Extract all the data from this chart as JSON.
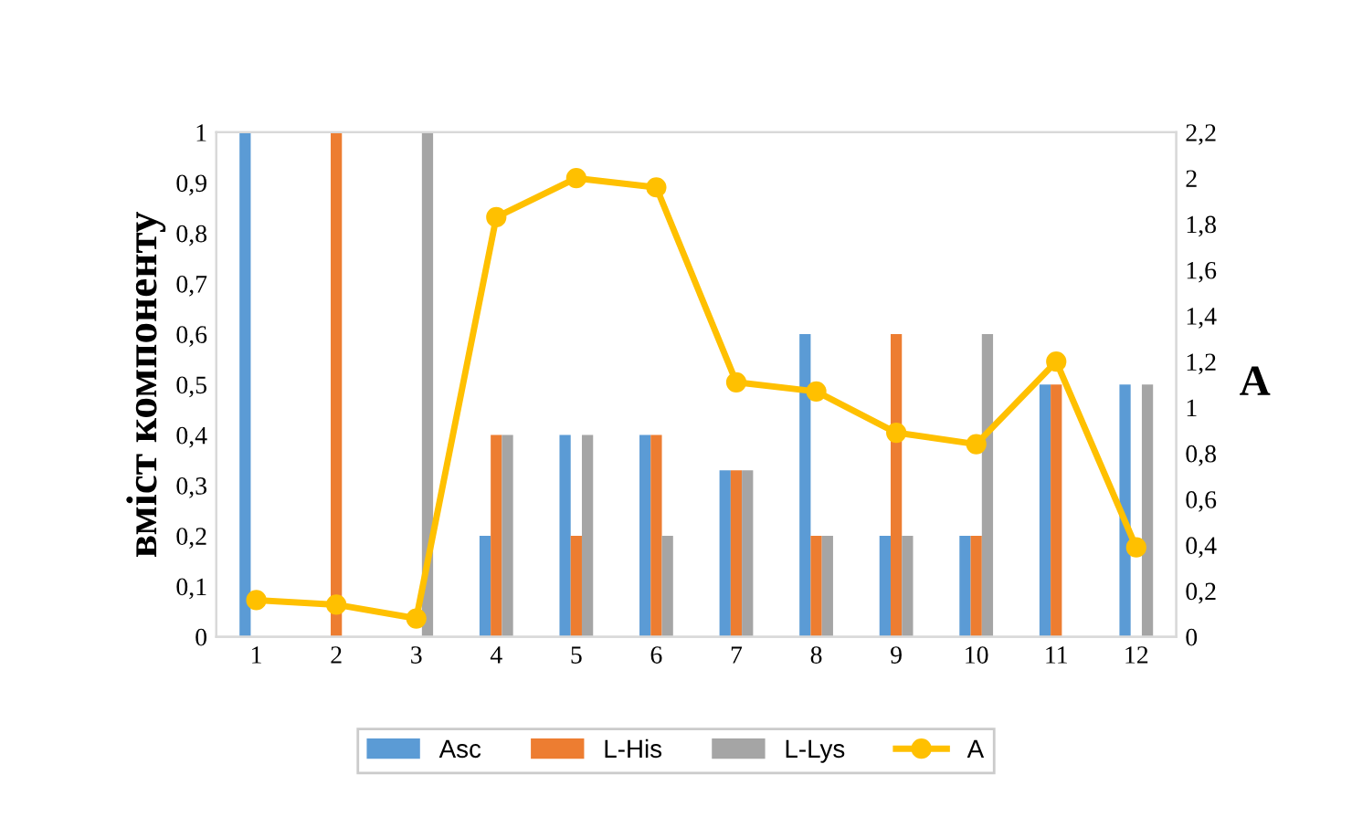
{
  "chart_data": {
    "type": "bar",
    "ylabel": "вміст компоненту",
    "y2label": "A",
    "categories": [
      "1",
      "2",
      "3",
      "4",
      "5",
      "6",
      "7",
      "8",
      "9",
      "10",
      "11",
      "12"
    ],
    "series": [
      {
        "name": "Asc",
        "color": "#5b9bd5",
        "values": [
          1,
          0,
          0,
          0.2,
          0.4,
          0.4,
          0.33,
          0.6,
          0.2,
          0.2,
          0.5,
          0.5
        ]
      },
      {
        "name": "L-His",
        "color": "#ed7d31",
        "values": [
          0,
          1,
          0,
          0.4,
          0.2,
          0.4,
          0.33,
          0.2,
          0.6,
          0.2,
          0.5,
          0
        ]
      },
      {
        "name": "L-Lys",
        "color": "#a5a5a5",
        "values": [
          0,
          0,
          1,
          0.4,
          0.4,
          0.2,
          0.33,
          0.2,
          0.2,
          0.6,
          0,
          0.5
        ]
      },
      {
        "name": "A",
        "type": "line",
        "axis": "y2",
        "color": "#ffc000",
        "marker": "circle",
        "values": [
          0.16,
          0.14,
          0.08,
          1.83,
          2.0,
          1.96,
          1.11,
          1.07,
          0.89,
          0.84,
          1.2,
          0.39
        ]
      }
    ],
    "ylim": [
      0,
      1
    ],
    "yticks": [
      0,
      {
        "value": 0.1,
        "label": "0,1"
      },
      {
        "value": 0.2,
        "label": "0,2"
      },
      {
        "value": 0.3,
        "label": "0,3"
      },
      {
        "value": 0.4,
        "label": "0,4"
      },
      {
        "value": 0.5,
        "label": "0,5"
      },
      {
        "value": 0.6,
        "label": "0,6"
      },
      {
        "value": 0.7,
        "label": "0,7"
      },
      {
        "value": 0.8,
        "label": "0,8"
      },
      {
        "value": 0.9,
        "label": "0,9"
      },
      1
    ],
    "y2lim": [
      0,
      2.2
    ],
    "y2ticks": [
      0,
      {
        "value": 0.2,
        "label": "0,2"
      },
      {
        "value": 0.4,
        "label": "0,4"
      },
      {
        "value": 0.6,
        "label": "0,6"
      },
      {
        "value": 0.8,
        "label": "0,8"
      },
      1,
      {
        "value": 1.2,
        "label": "1,2"
      },
      {
        "value": 1.4,
        "label": "1,4"
      },
      {
        "value": 1.6,
        "label": "1,6"
      },
      {
        "value": 1.8,
        "label": "1,8"
      },
      2,
      {
        "value": 2.2,
        "label": "2,2"
      }
    ],
    "grid": false,
    "legend": "bottom"
  }
}
